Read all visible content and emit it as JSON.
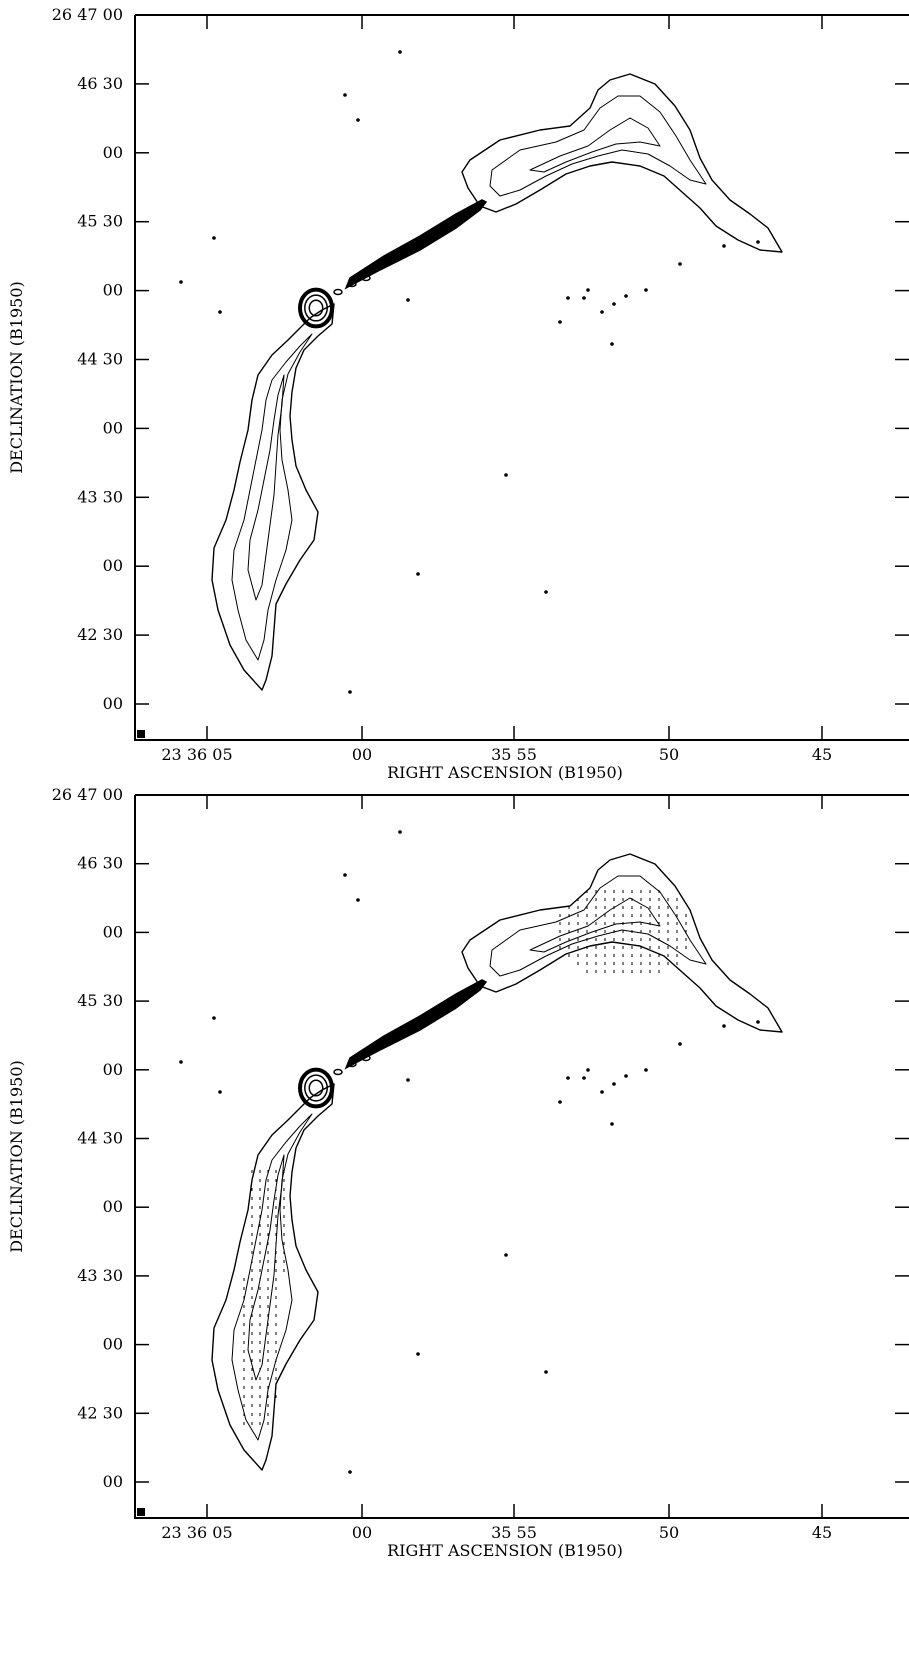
{
  "panels": [
    {
      "id": "top",
      "xlabel": "RIGHT ASCENSION (B1950)",
      "ylabel": "DECLINATION (B1950)",
      "y_ticks": [
        "26 47 00",
        "46 30",
        "00",
        "45 30",
        "00",
        "44 30",
        "00",
        "43 30",
        "00",
        "42 30",
        "00"
      ],
      "x_ticks": [
        "23 36 05",
        "00",
        "35 55",
        "50",
        "45"
      ],
      "polarization_vectors": false
    },
    {
      "id": "bottom",
      "xlabel": "RIGHT ASCENSION (B1950)",
      "ylabel": "DECLINATION (B1950)",
      "y_ticks": [
        "26 47 00",
        "46 30",
        "00",
        "45 30",
        "00",
        "44 30",
        "00",
        "43 30",
        "00",
        "42 30",
        "00"
      ],
      "x_ticks": [
        "23 36 05",
        "00",
        "35 55",
        "50",
        "45"
      ],
      "polarization_vectors": true
    }
  ],
  "colors": {
    "background": "#ffffff",
    "ink": "#000000"
  }
}
